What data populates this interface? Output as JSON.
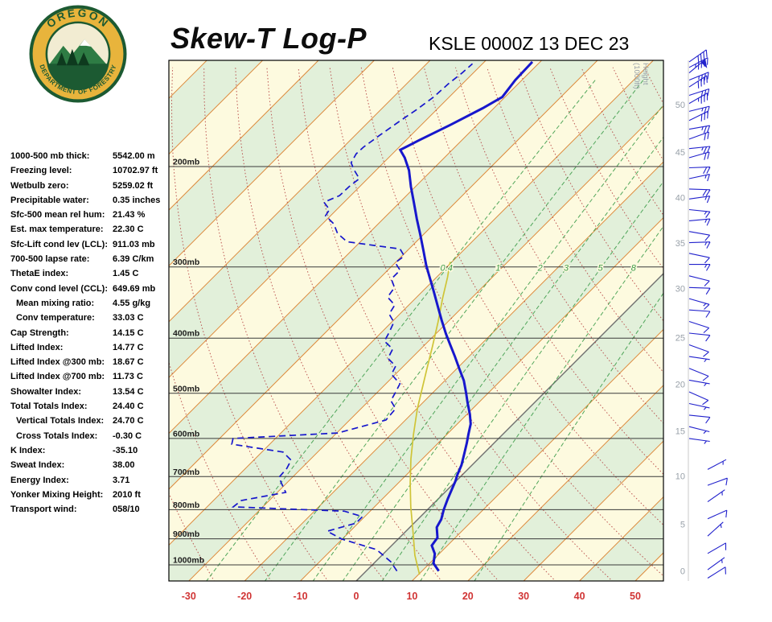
{
  "header": {
    "title": "Skew-T Log-P",
    "station": "KSLE 0000Z 13 DEC 23"
  },
  "logo": {
    "top_text": "OREGON",
    "bottom_text": "DEPARTMENT OF FORESTRY"
  },
  "colors": {
    "band_cream": "#FDFADF",
    "band_green": "#E2F0DA",
    "isotherm": "#DD8A3C",
    "zero_isotherm": "#707070",
    "dry_adiabat": "#B23A3A",
    "mixing": "#3F9D4C",
    "pressure_line": "#3a3a3a",
    "profile": "#1717CC",
    "parcel": "#CFC437",
    "axis_red": "#D03434",
    "height_gray": "#98A0A8",
    "wind": "#2121CC"
  },
  "indices": [
    {
      "label": "1000-500 mb thick:",
      "value": "5542.00 m",
      "indent": false
    },
    {
      "label": "Freezing level:",
      "value": "10702.97 ft",
      "indent": false
    },
    {
      "label": "Wetbulb zero:",
      "value": "5259.02 ft",
      "indent": false
    },
    {
      "label": "Precipitable water:",
      "value": "0.35 inches",
      "indent": false
    },
    {
      "label": "Sfc-500 mean rel hum:",
      "value": "21.43 %",
      "indent": false
    },
    {
      "label": "Est. max temperature:",
      "value": "22.30 C",
      "indent": false
    },
    {
      "label": "Sfc-Lift cond lev (LCL):",
      "value": "911.03 mb",
      "indent": false
    },
    {
      "label": "700-500 lapse rate:",
      "value": "6.39 C/km",
      "indent": false
    },
    {
      "label": "ThetaE index:",
      "value": "1.45 C",
      "indent": false
    },
    {
      "label": "Conv cond level (CCL):",
      "value": "649.69 mb",
      "indent": false
    },
    {
      "label": "Mean mixing ratio:",
      "value": "4.55 g/kg",
      "indent": true
    },
    {
      "label": "Conv temperature:",
      "value": "33.03 C",
      "indent": true
    },
    {
      "label": "Cap Strength:",
      "value": "14.15 C",
      "indent": false
    },
    {
      "label": "Lifted Index:",
      "value": "14.77 C",
      "indent": false
    },
    {
      "label": "Lifted Index @300 mb:",
      "value": "18.67 C",
      "indent": false
    },
    {
      "label": "Lifted Index @700 mb:",
      "value": "11.73 C",
      "indent": false
    },
    {
      "label": "Showalter Index:",
      "value": "13.54 C",
      "indent": false
    },
    {
      "label": "Total Totals Index:",
      "value": "24.40 C",
      "indent": false
    },
    {
      "label": "Vertical Totals Index:",
      "value": "24.70 C",
      "indent": true
    },
    {
      "label": "Cross Totals Index:",
      "value": "-0.30 C",
      "indent": true
    },
    {
      "label": "K Index:",
      "value": "-35.10",
      "indent": false
    },
    {
      "label": "Sweat Index:",
      "value": "38.00",
      "indent": false
    },
    {
      "label": "Energy Index:",
      "value": "3.71",
      "indent": false
    },
    {
      "label": "Yonker Mixing Height:",
      "value": "2010 ft",
      "indent": false
    },
    {
      "label": "Transport wind:",
      "value": "058/10",
      "indent": false
    }
  ],
  "chart_data": {
    "type": "skew-t",
    "title": "Skew-T Log-P",
    "station": "KSLE 0000Z 13 DEC 23",
    "x_axis": {
      "label_values": [
        -30,
        -20,
        -10,
        0,
        10,
        20,
        30,
        40,
        50
      ],
      "unit": "C"
    },
    "pressure_levels_mb": [
      200,
      300,
      400,
      500,
      600,
      700,
      800,
      900,
      1000
    ],
    "isotherm_step_c": 10,
    "height_scale": {
      "title_line1": "Height",
      "title_line2": "(1000ft)",
      "ticks": [
        {
          "label": "50",
          "p": 156
        },
        {
          "label": "45",
          "p": 189
        },
        {
          "label": "40",
          "p": 227
        },
        {
          "label": "35",
          "p": 273
        },
        {
          "label": "30",
          "p": 328
        },
        {
          "label": "25",
          "p": 400
        },
        {
          "label": "20",
          "p": 483
        },
        {
          "label": "15",
          "p": 583
        },
        {
          "label": "10",
          "p": 699
        },
        {
          "label": "5",
          "p": 850
        },
        {
          "label": "0",
          "p": 1026
        }
      ]
    },
    "mixing_ratio_lines": [
      0.4,
      1,
      2,
      3,
      5,
      8,
      15
    ],
    "mixing_ratio_labeled": [
      "0.4",
      "1",
      "2",
      "3",
      "5",
      "8"
    ],
    "dry_adiabats_theta_c": [
      -30,
      -20,
      -10,
      0,
      10,
      20,
      30,
      40,
      50,
      60,
      70,
      80,
      90,
      100,
      110,
      120,
      130,
      140,
      150
    ],
    "temperature_profile": [
      [
        1025,
        13.0
      ],
      [
        994,
        10.7
      ],
      [
        956,
        9.2
      ],
      [
        925,
        7.2
      ],
      [
        896,
        6.8
      ],
      [
        859,
        4.8
      ],
      [
        832,
        4.2
      ],
      [
        800,
        2.9
      ],
      [
        766,
        1.7
      ],
      [
        736,
        0.7
      ],
      [
        713,
        -0.1
      ],
      [
        695,
        -0.9
      ],
      [
        668,
        -1.9
      ],
      [
        635,
        -3.6
      ],
      [
        611,
        -4.9
      ],
      [
        591,
        -6.1
      ],
      [
        566,
        -7.6
      ],
      [
        544,
        -9.5
      ],
      [
        519,
        -12.0
      ],
      [
        499,
        -14.0
      ],
      [
        475,
        -16.6
      ],
      [
        453,
        -19.5
      ],
      [
        431,
        -22.5
      ],
      [
        410,
        -25.6
      ],
      [
        393,
        -28.2
      ],
      [
        372,
        -31.4
      ],
      [
        351,
        -34.7
      ],
      [
        331,
        -38.0
      ],
      [
        313,
        -41.2
      ],
      [
        298,
        -44.0
      ],
      [
        281,
        -47.1
      ],
      [
        264,
        -50.4
      ],
      [
        247,
        -54.0
      ],
      [
        231,
        -57.5
      ],
      [
        217,
        -60.8
      ],
      [
        203,
        -64.1
      ],
      [
        193,
        -67.1
      ],
      [
        187,
        -69.3
      ],
      [
        180,
        -67.7
      ],
      [
        169,
        -64.8
      ],
      [
        158,
        -62.0
      ],
      [
        151,
        -60.5
      ],
      [
        141,
        -61.2
      ],
      [
        131,
        -61.4
      ]
    ],
    "dewpoint_profile": [
      [
        1025,
        5.5
      ],
      [
        987,
        2.7
      ],
      [
        940,
        -2.0
      ],
      [
        901,
        -10.1
      ],
      [
        873,
        -14.1
      ],
      [
        845,
        -10.4
      ],
      [
        823,
        -10.4
      ],
      [
        805,
        -14.6
      ],
      [
        791,
        -35.3
      ],
      [
        771,
        -35.0
      ],
      [
        746,
        -28.5
      ],
      [
        718,
        -31.0
      ],
      [
        702,
        -32.4
      ],
      [
        677,
        -32.6
      ],
      [
        655,
        -33.3
      ],
      [
        634,
        -36.2
      ],
      [
        614,
        -46.8
      ],
      [
        600,
        -47.6
      ],
      [
        587,
        -29.8
      ],
      [
        557,
        -23.5
      ],
      [
        532,
        -23.8
      ],
      [
        515,
        -26.1
      ],
      [
        499,
        -26.7
      ],
      [
        481,
        -27.5
      ],
      [
        463,
        -30.7
      ],
      [
        448,
        -31.4
      ],
      [
        434,
        -34.2
      ],
      [
        418,
        -35.0
      ],
      [
        405,
        -37.9
      ],
      [
        391,
        -38.6
      ],
      [
        375,
        -39.6
      ],
      [
        363,
        -41.9
      ],
      [
        350,
        -42.5
      ],
      [
        339,
        -45.2
      ],
      [
        326,
        -45.7
      ],
      [
        315,
        -47.8
      ],
      [
        304,
        -47.8
      ],
      [
        295,
        -50.0
      ],
      [
        287,
        -49.6
      ],
      [
        279,
        -51.6
      ],
      [
        271,
        -62.4
      ],
      [
        262,
        -65.6
      ],
      [
        252,
        -68.0
      ],
      [
        244,
        -70.9
      ],
      [
        238,
        -71.3
      ],
      [
        231,
        -73.6
      ],
      [
        225,
        -72.0
      ],
      [
        217,
        -71.9
      ],
      [
        210,
        -71.5
      ],
      [
        203,
        -73.9
      ],
      [
        197,
        -75.8
      ],
      [
        190,
        -76.5
      ],
      [
        185,
        -76.4
      ],
      [
        176,
        -75.6
      ],
      [
        167,
        -74.6
      ],
      [
        159,
        -73.6
      ],
      [
        151,
        -72.8
      ],
      [
        143,
        -72.5
      ],
      [
        137,
        -72.0
      ],
      [
        132,
        -71.8
      ]
    ],
    "parcel_trace": [
      [
        1040,
        10.2
      ],
      [
        962,
        5.9
      ],
      [
        872,
        1.2
      ],
      [
        791,
        -3.5
      ],
      [
        718,
        -7.9
      ],
      [
        651,
        -12.1
      ],
      [
        590,
        -16.0
      ],
      [
        532,
        -19.9
      ],
      [
        497,
        -22.2
      ],
      [
        452,
        -25.4
      ],
      [
        413,
        -28.4
      ],
      [
        375,
        -31.7
      ],
      [
        340,
        -35.2
      ],
      [
        313,
        -38.0
      ],
      [
        294,
        -40.3
      ]
    ],
    "winds": [
      {
        "p": 131,
        "dir": 55,
        "spd": 40,
        "group": 1
      },
      {
        "p": 134,
        "dir": 62,
        "spd": 45,
        "group": 1
      },
      {
        "p": 137,
        "dir": 50,
        "spd": 50,
        "group": 1
      },
      {
        "p": 141,
        "dir": 68,
        "spd": 35,
        "group": 1
      },
      {
        "p": 145,
        "dir": 57,
        "spd": 40,
        "group": 1
      },
      {
        "p": 150,
        "dir": 72,
        "spd": 30,
        "group": 1
      },
      {
        "p": 155,
        "dir": 60,
        "spd": 35,
        "group": 1
      },
      {
        "p": 160,
        "dir": 76,
        "spd": 25,
        "group": 1
      },
      {
        "p": 166,
        "dir": 64,
        "spd": 30,
        "group": 1
      },
      {
        "p": 172,
        "dir": 80,
        "spd": 25,
        "group": 1
      },
      {
        "p": 179,
        "dir": 70,
        "spd": 20,
        "group": 1
      },
      {
        "p": 186,
        "dir": 84,
        "spd": 25,
        "group": 1
      },
      {
        "p": 193,
        "dir": 74,
        "spd": 20,
        "group": 1
      },
      {
        "p": 201,
        "dir": 88,
        "spd": 20,
        "group": 1
      },
      {
        "p": 210,
        "dir": 78,
        "spd": 15,
        "group": 1
      },
      {
        "p": 219,
        "dir": 92,
        "spd": 20,
        "group": 1
      },
      {
        "p": 228,
        "dir": 82,
        "spd": 15,
        "group": 1
      },
      {
        "p": 238,
        "dir": 96,
        "spd": 15,
        "group": 1
      },
      {
        "p": 249,
        "dir": 85,
        "spd": 15,
        "group": 1
      },
      {
        "p": 260,
        "dir": 100,
        "spd": 10,
        "group": 1
      },
      {
        "p": 272,
        "dir": 88,
        "spd": 15,
        "group": 1
      },
      {
        "p": 284,
        "dir": 102,
        "spd": 10,
        "group": 1
      },
      {
        "p": 297,
        "dir": 90,
        "spd": 15,
        "group": 1
      },
      {
        "p": 311,
        "dir": 104,
        "spd": 10,
        "group": 1
      },
      {
        "p": 326,
        "dir": 92,
        "spd": 10,
        "group": 1
      },
      {
        "p": 341,
        "dir": 106,
        "spd": 15,
        "group": 1
      },
      {
        "p": 357,
        "dir": 94,
        "spd": 10,
        "group": 1
      },
      {
        "p": 374,
        "dir": 108,
        "spd": 10,
        "group": 1
      },
      {
        "p": 392,
        "dir": 96,
        "spd": 10,
        "group": 1
      },
      {
        "p": 411,
        "dir": 110,
        "spd": 10,
        "group": 1
      },
      {
        "p": 431,
        "dir": 98,
        "spd": 5,
        "group": 1
      },
      {
        "p": 452,
        "dir": 112,
        "spd": 10,
        "group": 1
      },
      {
        "p": 474,
        "dir": 100,
        "spd": 5,
        "group": 1
      },
      {
        "p": 497,
        "dir": 114,
        "spd": 10,
        "group": 1
      },
      {
        "p": 521,
        "dir": 102,
        "spd": 5,
        "group": 1
      },
      {
        "p": 546,
        "dir": 96,
        "spd": 10,
        "group": 1
      },
      {
        "p": 572,
        "dir": 104,
        "spd": 5,
        "group": 1
      },
      {
        "p": 600,
        "dir": 98,
        "spd": 5,
        "group": 1
      },
      {
        "p": 680,
        "dir": 62,
        "spd": 5,
        "group": 2
      },
      {
        "p": 725,
        "dir": 70,
        "spd": 10,
        "group": 2
      },
      {
        "p": 775,
        "dir": 55,
        "spd": 5,
        "group": 2
      },
      {
        "p": 830,
        "dir": 66,
        "spd": 10,
        "group": 2
      },
      {
        "p": 890,
        "dir": 48,
        "spd": 5,
        "group": 2
      },
      {
        "p": 955,
        "dir": 60,
        "spd": 10,
        "group": 2
      },
      {
        "p": 1020,
        "dir": 54,
        "spd": 5,
        "group": 2
      },
      {
        "p": 1055,
        "dir": 58,
        "spd": 10,
        "group": 2
      }
    ]
  }
}
